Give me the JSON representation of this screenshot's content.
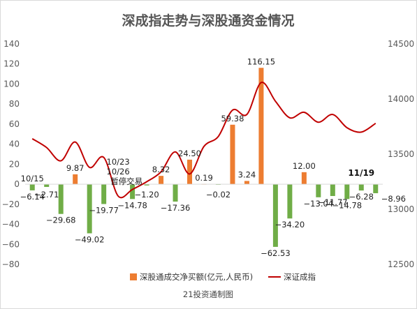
{
  "chart_data": {
    "type": "bar",
    "title": "深成指走势与深股通资金情况",
    "source": "21投资通制图",
    "left_axis": {
      "min": -80,
      "max": 140,
      "step": 20,
      "ticks": [
        "140",
        "120",
        "100",
        "80",
        "60",
        "40",
        "20",
        "0",
        "−20",
        "−40",
        "−60",
        "−80"
      ]
    },
    "right_axis": {
      "min": 12500,
      "max": 14500,
      "step": 500,
      "ticks": [
        "14500",
        "14000",
        "13500",
        "13000",
        "12500"
      ]
    },
    "legend_position": "bottom",
    "series": [
      {
        "name": "深股通成交净买额(亿元,人民币)",
        "type": "bar",
        "axis": "left",
        "values": [
          -6.14,
          -2.71,
          -29.68,
          9.87,
          -49.02,
          -19.77,
          0,
          -14.78,
          -1.2,
          8.32,
          -17.36,
          24.5,
          0.19,
          -0.02,
          59.38,
          3.24,
          116.15,
          -62.53,
          -34.2,
          12.0,
          -13.04,
          -11.77,
          -14.78,
          -6.28,
          -8.96
        ],
        "labels": [
          "−6.14",
          "−2.71",
          "−29.68",
          "9.87",
          "−49.02",
          "−19.77",
          "",
          "−14.78",
          "−1.20",
          "8.32",
          "−17.36",
          "24.50",
          "0.19",
          "−0.02",
          "59.38",
          "3.24",
          "116.15",
          "−62.53",
          "−34.20",
          "12.00",
          "−13.04",
          "−11.77",
          "−14.78",
          "−6.28",
          "−8.96"
        ]
      },
      {
        "name": "深证成指",
        "type": "line",
        "axis": "right",
        "values": [
          13640,
          13560,
          13440,
          13610,
          13380,
          13470,
          13120,
          13180,
          13250,
          13340,
          13520,
          13320,
          13570,
          13660,
          13900,
          13860,
          14150,
          13980,
          13830,
          13880,
          13790,
          13860,
          13740,
          13700,
          13780
        ]
      }
    ],
    "annotations": [
      {
        "text": "10/15",
        "bold": false
      },
      {
        "text": "10/23",
        "bold": false
      },
      {
        "text": "10/26",
        "bold": false
      },
      {
        "text": "暂停交易",
        "bold": false
      },
      {
        "text": "11/19",
        "bold": true
      }
    ],
    "colors": {
      "bar_positive": "#ed7d31",
      "bar_negative": "#70ad47",
      "line": "#c00000"
    }
  }
}
